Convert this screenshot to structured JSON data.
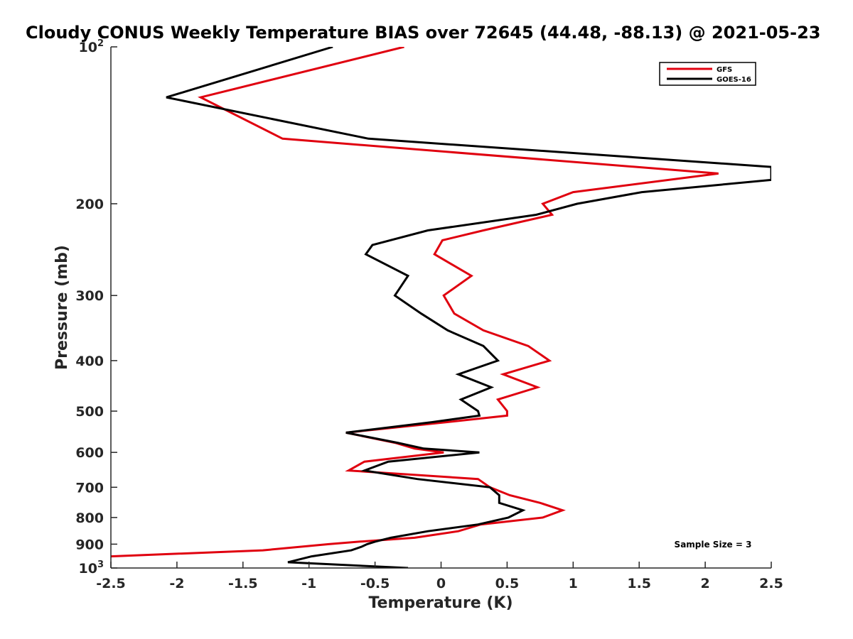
{
  "chart_data": {
    "type": "line",
    "title": "Cloudy CONUS Weekly Temperature BIAS over 72645 (44.48, -88.13) @ 2021-05-23",
    "xlabel": "Temperature (K)",
    "ylabel": "Pressure (mb)",
    "xlim": [
      -2.5,
      2.5
    ],
    "ylim": [
      100,
      1000
    ],
    "y_scale": "log",
    "y_reversed": true,
    "x_ticks": [
      "-2.5",
      "-2",
      "-1.5",
      "-1",
      "-0.5",
      "0",
      "0.5",
      "1",
      "1.5",
      "2",
      "2.5"
    ],
    "y_ticks": [
      {
        "p": 100,
        "label": "10",
        "sup": "2"
      },
      {
        "p": 200,
        "label": "200"
      },
      {
        "p": 300,
        "label": "300"
      },
      {
        "p": 400,
        "label": "400"
      },
      {
        "p": 500,
        "label": "500"
      },
      {
        "p": 600,
        "label": "600"
      },
      {
        "p": 700,
        "label": "700"
      },
      {
        "p": 800,
        "label": "800"
      },
      {
        "p": 900,
        "label": "900"
      },
      {
        "p": 1000,
        "label": "10",
        "sup": "3"
      }
    ],
    "legend_position": "top-right",
    "annotation": "Sample Size = 3",
    "series": [
      {
        "name": "GFS",
        "color": "#e0000f",
        "points": [
          [
            -0.28,
            100
          ],
          [
            -1.82,
            125
          ],
          [
            -1.2,
            150
          ],
          [
            2.1,
            175
          ],
          [
            1.0,
            190
          ],
          [
            0.77,
            200
          ],
          [
            0.84,
            210
          ],
          [
            0.32,
            225
          ],
          [
            0.01,
            235
          ],
          [
            -0.05,
            250
          ],
          [
            0.23,
            275
          ],
          [
            0.02,
            300
          ],
          [
            0.1,
            325
          ],
          [
            0.32,
            350
          ],
          [
            0.66,
            375
          ],
          [
            0.82,
            400
          ],
          [
            0.47,
            425
          ],
          [
            0.73,
            450
          ],
          [
            0.43,
            475
          ],
          [
            0.5,
            500
          ],
          [
            0.5,
            510
          ],
          [
            0.04,
            525
          ],
          [
            -0.72,
            550
          ],
          [
            -0.35,
            575
          ],
          [
            -0.2,
            590
          ],
          [
            0.02,
            600
          ],
          [
            -0.58,
            625
          ],
          [
            -0.7,
            650
          ],
          [
            0.28,
            675
          ],
          [
            0.37,
            700
          ],
          [
            0.52,
            725
          ],
          [
            0.75,
            750
          ],
          [
            0.92,
            775
          ],
          [
            0.77,
            800
          ],
          [
            0.3,
            825
          ],
          [
            0.13,
            850
          ],
          [
            -0.2,
            875
          ],
          [
            -0.62,
            890
          ],
          [
            -0.85,
            900
          ],
          [
            -1.35,
            925
          ],
          [
            -2.5,
            950
          ]
        ]
      },
      {
        "name": "GOES-16",
        "color": "#000000",
        "points": [
          [
            -0.82,
            100
          ],
          [
            -2.08,
            125
          ],
          [
            -0.55,
            150
          ],
          [
            2.5,
            170
          ],
          [
            2.5,
            180
          ],
          [
            1.52,
            190
          ],
          [
            1.03,
            200
          ],
          [
            0.72,
            210
          ],
          [
            -0.1,
            225
          ],
          [
            -0.52,
            240
          ],
          [
            -0.57,
            250
          ],
          [
            -0.25,
            275
          ],
          [
            -0.35,
            300
          ],
          [
            -0.15,
            325
          ],
          [
            0.05,
            350
          ],
          [
            0.32,
            375
          ],
          [
            0.43,
            400
          ],
          [
            0.13,
            425
          ],
          [
            0.38,
            450
          ],
          [
            0.15,
            475
          ],
          [
            0.28,
            500
          ],
          [
            0.29,
            510
          ],
          [
            -0.07,
            525
          ],
          [
            -0.72,
            550
          ],
          [
            -0.33,
            575
          ],
          [
            -0.13,
            590
          ],
          [
            0.29,
            600
          ],
          [
            -0.4,
            625
          ],
          [
            -0.58,
            650
          ],
          [
            -0.18,
            675
          ],
          [
            0.37,
            700
          ],
          [
            0.44,
            725
          ],
          [
            0.44,
            750
          ],
          [
            0.62,
            775
          ],
          [
            0.51,
            800
          ],
          [
            0.28,
            825
          ],
          [
            -0.1,
            850
          ],
          [
            -0.38,
            875
          ],
          [
            -0.5,
            890
          ],
          [
            -0.56,
            900
          ],
          [
            -0.6,
            910
          ],
          [
            -0.68,
            925
          ],
          [
            -0.98,
            950
          ],
          [
            -1.16,
            975
          ],
          [
            -0.25,
            1000
          ]
        ]
      }
    ]
  }
}
